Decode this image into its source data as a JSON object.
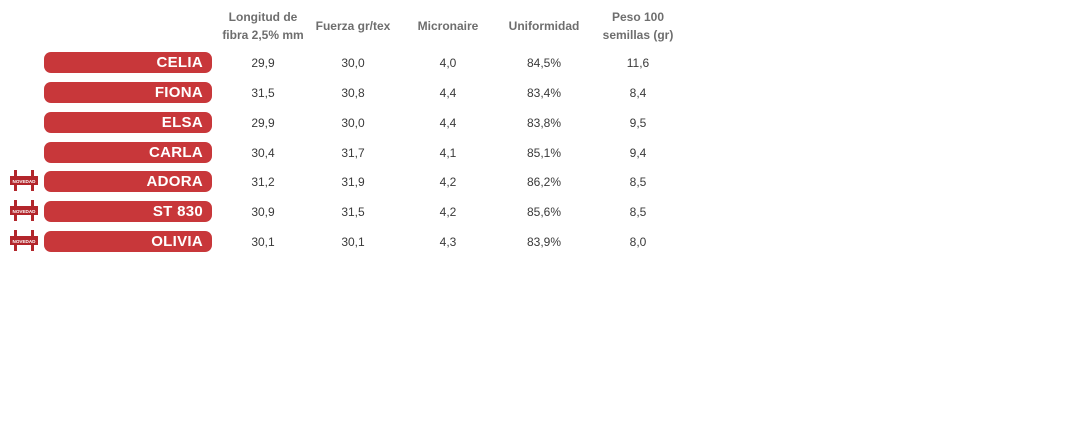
{
  "columns": [
    "Longitud de\nfibra 2,5% mm",
    "Fuerza gr/tex",
    "Micronaire",
    "Uniformidad",
    "Peso 100\nsemillas (gr)"
  ],
  "badge_label": "NOVEDAD",
  "colors": {
    "pill": "#c8373a",
    "header_text": "#6e6e6e",
    "cell_text": "#3a3a3a",
    "badge": "#b3262b"
  },
  "rows": [
    {
      "name": "CELIA",
      "novedad": false,
      "values": [
        "29,9",
        "30,0",
        "4,0",
        "84,5%",
        "11,6"
      ]
    },
    {
      "name": "FIONA",
      "novedad": false,
      "values": [
        "31,5",
        "30,8",
        "4,4",
        "83,4%",
        "8,4"
      ]
    },
    {
      "name": "ELSA",
      "novedad": false,
      "values": [
        "29,9",
        "30,0",
        "4,4",
        "83,8%",
        "9,5"
      ]
    },
    {
      "name": "CARLA",
      "novedad": false,
      "values": [
        "30,4",
        "31,7",
        "4,1",
        "85,1%",
        "9,4"
      ]
    },
    {
      "name": "ADORA",
      "novedad": true,
      "values": [
        "31,2",
        "31,9",
        "4,2",
        "86,2%",
        "8,5"
      ]
    },
    {
      "name": "ST 830",
      "novedad": true,
      "values": [
        "30,9",
        "31,5",
        "4,2",
        "85,6%",
        "8,5"
      ]
    },
    {
      "name": "OLIVIA",
      "novedad": true,
      "values": [
        "30,1",
        "30,1",
        "4,3",
        "83,9%",
        "8,0"
      ]
    }
  ]
}
